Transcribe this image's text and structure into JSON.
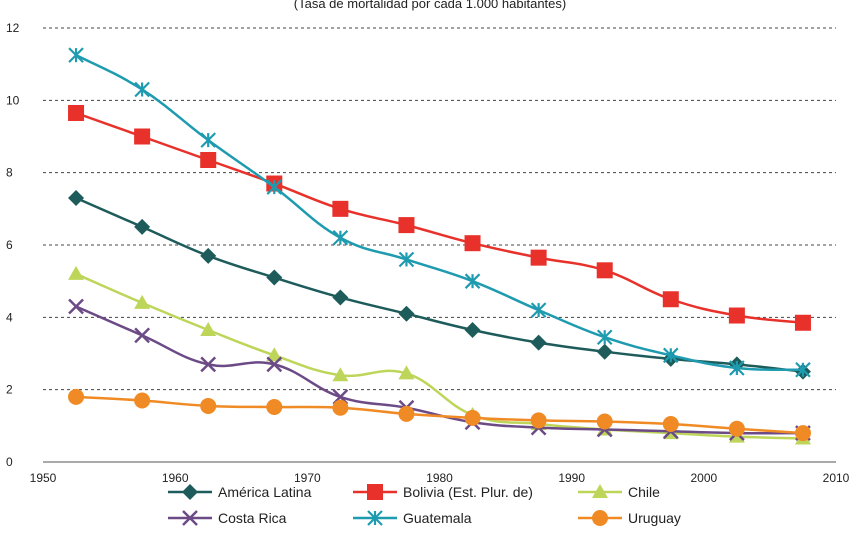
{
  "chart_data": {
    "type": "line",
    "title": "(Tasa de mortalidad por cada 1.000 habitantes)",
    "x": [
      1952.5,
      1957.5,
      1962.5,
      1967.5,
      1972.5,
      1977.5,
      1982.5,
      1987.5,
      1992.5,
      1997.5,
      2002.5,
      2007.5
    ],
    "xlim": [
      1950,
      2010
    ],
    "ylim": [
      0,
      12
    ],
    "xticks": [
      "1950",
      "1960",
      "1970",
      "1980",
      "1990",
      "2000",
      "2010"
    ],
    "yticks": [
      "0",
      "2",
      "4",
      "6",
      "8",
      "10",
      "12"
    ],
    "grid": "horizontal dashed",
    "legend_position": "bottom",
    "series": [
      {
        "name": "América Latina",
        "color": "#1d5c5a",
        "marker": "diamond",
        "values": [
          7.3,
          6.5,
          5.7,
          5.1,
          4.55,
          4.1,
          3.65,
          3.3,
          3.05,
          2.85,
          2.7,
          2.5
        ]
      },
      {
        "name": "Bolivia (Est. Plur. de)",
        "color": "#e8312a",
        "marker": "square",
        "values": [
          9.65,
          9.0,
          8.35,
          7.7,
          7.0,
          6.55,
          6.05,
          5.65,
          5.3,
          4.5,
          4.05,
          3.85
        ]
      },
      {
        "name": "Chile",
        "color": "#bdd65a",
        "marker": "triangle",
        "values": [
          5.2,
          4.4,
          3.65,
          2.95,
          2.4,
          2.45,
          1.3,
          1.05,
          0.9,
          0.8,
          0.7,
          0.65
        ]
      },
      {
        "name": "Costa Rica",
        "color": "#6b4a86",
        "marker": "x",
        "values": [
          4.3,
          3.5,
          2.7,
          2.7,
          1.8,
          1.5,
          1.1,
          0.95,
          0.9,
          0.85,
          0.8,
          0.8
        ]
      },
      {
        "name": "Guatemala",
        "color": "#1f9bb0",
        "marker": "star",
        "values": [
          11.25,
          10.3,
          8.9,
          7.6,
          6.2,
          5.6,
          5.0,
          4.2,
          3.45,
          2.95,
          2.6,
          2.55
        ]
      },
      {
        "name": "Uruguay",
        "color": "#f08a24",
        "marker": "circle",
        "values": [
          1.8,
          1.7,
          1.55,
          1.52,
          1.5,
          1.33,
          1.22,
          1.15,
          1.12,
          1.05,
          0.92,
          0.8
        ]
      }
    ]
  }
}
